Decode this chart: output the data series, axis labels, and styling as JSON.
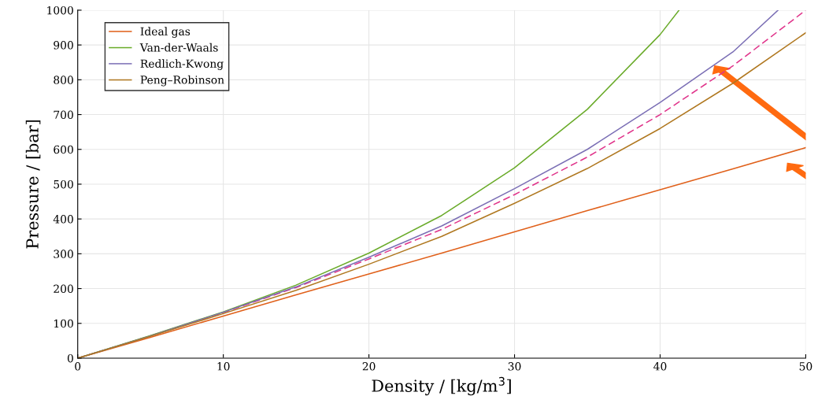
{
  "chart_data": {
    "type": "line",
    "xlabel": "Density / [kg/m$^{3}$]",
    "ylabel": "Pressure / [bar]",
    "x": [
      0,
      5,
      10,
      15,
      20,
      25,
      30,
      35,
      40,
      45,
      50
    ],
    "series": [
      {
        "color": "#e0338a",
        "line_style": "dashed",
        "values": [
          0,
          64,
          131,
          203,
          285,
          370,
          470,
          578,
          700,
          840,
          1000
        ]
      },
      {
        "name": "Ideal gas",
        "color": "#e0601a",
        "values": [
          0,
          60,
          121,
          182,
          242,
          302,
          363,
          424,
          484,
          544,
          605
        ]
      },
      {
        "name": "Van-der-Waals",
        "color": "#6aab2a",
        "x": [
          0,
          5,
          10,
          15,
          20,
          25,
          30,
          35,
          40,
          41.3
        ],
        "values": [
          0,
          65,
          133,
          210,
          302,
          410,
          547,
          715,
          930,
          1000
        ]
      },
      {
        "name": "Redlich-Kwong",
        "color": "#7b6fb5",
        "x": [
          0,
          5,
          10,
          15,
          20,
          25,
          30,
          35,
          40,
          45,
          48.1
        ],
        "values": [
          0,
          64,
          132,
          205,
          290,
          380,
          487,
          600,
          735,
          880,
          1000
        ]
      },
      {
        "name": "Peng–Robinson",
        "color": "#b07820",
        "values": [
          0,
          63,
          128,
          195,
          270,
          350,
          445,
          545,
          660,
          790,
          935
        ]
      }
    ],
    "xlim": [
      0,
      50
    ],
    "ylim": [
      0,
      1000
    ],
    "xticks": [
      0,
      10,
      20,
      30,
      40,
      50
    ],
    "yticks": [
      0,
      100,
      200,
      300,
      400,
      500,
      600,
      700,
      800,
      900,
      1000
    ],
    "grid": true,
    "legend": "top left",
    "line_style": "solid",
    "marker": "none"
  }
}
